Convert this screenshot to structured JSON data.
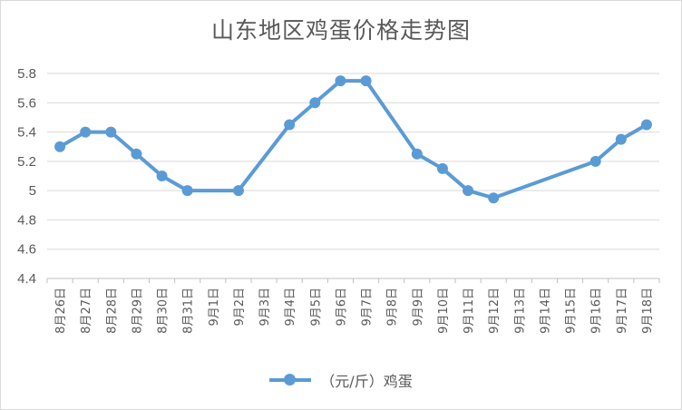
{
  "chart_data": {
    "type": "line",
    "title": "山东地区鸡蛋价格走势图",
    "categories": [
      "8月26日",
      "8月27日",
      "8月28日",
      "8月29日",
      "8月30日",
      "8月31日",
      "9月1日",
      "9月2日",
      "9月3日",
      "9月4日",
      "9月5日",
      "9月6日",
      "9月7日",
      "9月8日",
      "9月9日",
      "9月10日",
      "9月11日",
      "9月12日",
      "9月13日",
      "9月14日",
      "9月15日",
      "9月16日",
      "9月17日",
      "9月18日"
    ],
    "series": [
      {
        "name": "（元/斤）鸡蛋",
        "values": [
          5.3,
          5.4,
          5.4,
          5.25,
          5.1,
          5.0,
          null,
          5.0,
          null,
          5.45,
          5.6,
          5.75,
          5.75,
          null,
          5.25,
          5.15,
          5.0,
          4.95,
          null,
          null,
          null,
          5.2,
          5.35,
          5.45
        ],
        "color": "#5b9bd5"
      }
    ],
    "yticks": [
      "4.4",
      "4.6",
      "4.8",
      "5",
      "5.2",
      "5.4",
      "5.6",
      "5.8"
    ],
    "ylim": [
      4.4,
      5.8
    ],
    "grid": true,
    "legend_position": "bottom"
  }
}
